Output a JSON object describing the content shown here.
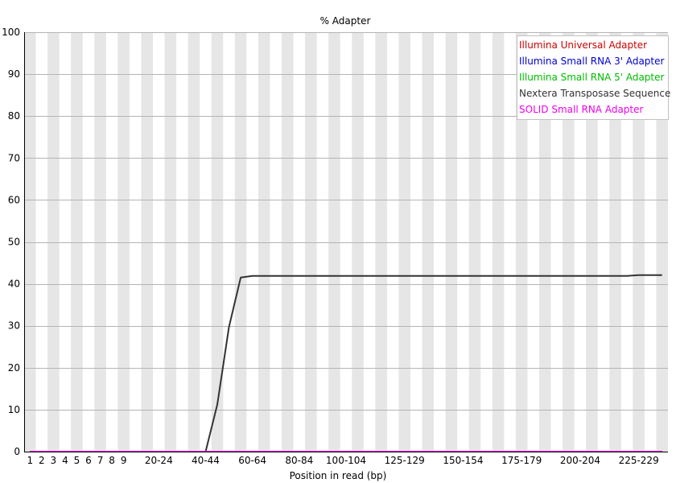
{
  "chart_data": {
    "type": "line",
    "title": "% Adapter",
    "xlabel": "Position in read (bp)",
    "ylabel": "",
    "ylim": [
      0,
      100
    ],
    "y_ticks": [
      0,
      10,
      20,
      30,
      40,
      50,
      60,
      70,
      80,
      90,
      100
    ],
    "grid": true,
    "legend_position": "top-right",
    "categories": [
      "1",
      "2",
      "3",
      "4",
      "5",
      "6",
      "7",
      "8",
      "9",
      "10-14",
      "15-19",
      "20-24",
      "25-29",
      "30-34",
      "35-39",
      "40-44",
      "45-49",
      "50-54",
      "55-59",
      "60-64",
      "65-69",
      "70-74",
      "75-79",
      "80-84",
      "85-89",
      "90-94",
      "95-99",
      "100-104",
      "105-109",
      "110-114",
      "115-119",
      "120-124",
      "125-129",
      "130-134",
      "135-139",
      "140-144",
      "145-149",
      "150-154",
      "155-159",
      "160-164",
      "165-169",
      "170-174",
      "175-179",
      "180-184",
      "185-189",
      "190-194",
      "195-199",
      "200-204",
      "205-209",
      "210-214",
      "215-219",
      "220-224",
      "225-229",
      "230-234",
      "235-239"
    ],
    "x_tick_labels": [
      "1",
      "2",
      "3",
      "4",
      "5",
      "6",
      "7",
      "8",
      "9",
      "20-24",
      "40-44",
      "60-64",
      "80-84",
      "100-104",
      "125-129",
      "150-154",
      "175-179",
      "200-204",
      "225-229"
    ],
    "series": [
      {
        "name": "Illumina Universal Adapter",
        "color": "#cc0000",
        "values": [
          0,
          0,
          0,
          0,
          0,
          0,
          0,
          0,
          0,
          0,
          0,
          0,
          0,
          0,
          0,
          0,
          0,
          0,
          0,
          0,
          0,
          0,
          0,
          0,
          0,
          0,
          0,
          0,
          0,
          0,
          0,
          0,
          0,
          0,
          0,
          0,
          0,
          0,
          0,
          0,
          0,
          0,
          0,
          0,
          0,
          0,
          0,
          0,
          0,
          0,
          0,
          0,
          0,
          0,
          0
        ]
      },
      {
        "name": "Illumina Small RNA 3' Adapter",
        "color": "#0000cc",
        "values": [
          0,
          0,
          0,
          0,
          0,
          0,
          0,
          0,
          0,
          0,
          0,
          0,
          0,
          0,
          0,
          0,
          0,
          0,
          0,
          0,
          0,
          0,
          0,
          0,
          0,
          0,
          0,
          0,
          0,
          0,
          0,
          0,
          0,
          0,
          0,
          0,
          0,
          0,
          0,
          0,
          0,
          0,
          0,
          0,
          0,
          0,
          0,
          0,
          0,
          0,
          0,
          0,
          0,
          0,
          0
        ]
      },
      {
        "name": "Illumina Small RNA 5' Adapter",
        "color": "#00bb00",
        "values": [
          0,
          0,
          0,
          0,
          0,
          0,
          0,
          0,
          0,
          0,
          0,
          0,
          0,
          0,
          0,
          0,
          0,
          0,
          0,
          0,
          0,
          0,
          0,
          0,
          0,
          0,
          0,
          0,
          0,
          0,
          0,
          0,
          0,
          0,
          0,
          0,
          0,
          0,
          0,
          0,
          0,
          0,
          0,
          0,
          0,
          0,
          0,
          0,
          0,
          0,
          0,
          0,
          0,
          0,
          0
        ]
      },
      {
        "name": "Nextera Transposase Sequence",
        "color": "#333333",
        "values": [
          0,
          0,
          0,
          0,
          0,
          0,
          0,
          0,
          0,
          0,
          0,
          0,
          0,
          0,
          0,
          0,
          11.2,
          29.7,
          41.5,
          41.9,
          41.9,
          41.9,
          41.9,
          41.9,
          41.9,
          41.9,
          41.9,
          41.9,
          41.9,
          41.9,
          41.9,
          41.9,
          41.9,
          41.9,
          41.9,
          41.9,
          41.9,
          41.9,
          41.9,
          41.9,
          41.9,
          41.9,
          41.9,
          41.9,
          41.9,
          41.9,
          41.9,
          41.9,
          41.9,
          41.9,
          41.9,
          41.9,
          42.1,
          42.1,
          42.1
        ]
      },
      {
        "name": "SOLID Small RNA Adapter",
        "color": "#ee00ee",
        "values": [
          0,
          0,
          0,
          0,
          0,
          0,
          0,
          0,
          0,
          0,
          0,
          0,
          0,
          0,
          0,
          0,
          0,
          0,
          0,
          0,
          0,
          0,
          0,
          0,
          0,
          0,
          0,
          0,
          0,
          0,
          0,
          0,
          0,
          0,
          0,
          0,
          0,
          0,
          0,
          0,
          0,
          0,
          0,
          0,
          0,
          0,
          0,
          0,
          0,
          0,
          0,
          0,
          0,
          0,
          0
        ]
      }
    ]
  }
}
